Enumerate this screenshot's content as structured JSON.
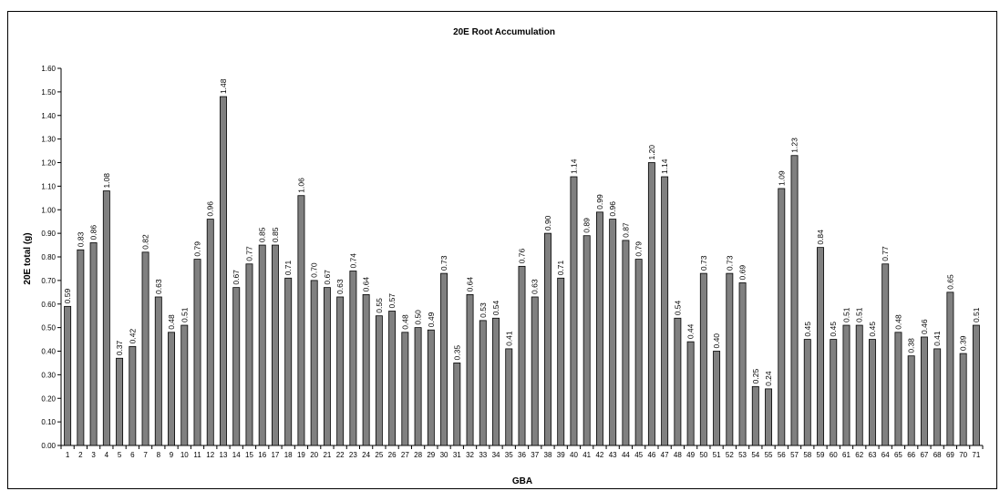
{
  "chart_data": {
    "type": "bar",
    "title": "20E Root Accumulation",
    "xlabel": "GBA",
    "ylabel": "20E total (g)",
    "ylim": [
      0,
      1.6
    ],
    "ytick_step": 0.1,
    "ytick_labels": [
      "0.00",
      "0.10",
      "0.20",
      "0.30",
      "0.40",
      "0.50",
      "0.60",
      "0.70",
      "0.80",
      "0.90",
      "1.00",
      "1.10",
      "1.20",
      "1.30",
      "1.40",
      "1.50",
      "1.60"
    ],
    "grid": false,
    "legend": "none",
    "bar_color": "#808080",
    "categories": [
      "1",
      "2",
      "3",
      "4",
      "5",
      "6",
      "7",
      "8",
      "9",
      "10",
      "11",
      "12",
      "13",
      "14",
      "15",
      "16",
      "17",
      "18",
      "19",
      "20",
      "21",
      "22",
      "23",
      "24",
      "25",
      "26",
      "27",
      "28",
      "29",
      "30",
      "31",
      "32",
      "33",
      "34",
      "35",
      "36",
      "37",
      "38",
      "39",
      "40",
      "41",
      "42",
      "43",
      "44",
      "45",
      "46",
      "47",
      "48",
      "49",
      "50",
      "51",
      "52",
      "53",
      "54",
      "55",
      "56",
      "57",
      "58",
      "59",
      "60",
      "61",
      "62",
      "63",
      "64",
      "65",
      "66",
      "67",
      "68",
      "69",
      "70",
      "71"
    ],
    "values": [
      0.59,
      0.83,
      0.86,
      1.08,
      0.37,
      0.42,
      0.82,
      0.63,
      0.48,
      0.51,
      0.79,
      0.96,
      1.48,
      0.67,
      0.77,
      0.85,
      0.85,
      0.71,
      1.06,
      0.7,
      0.67,
      0.63,
      0.74,
      0.64,
      0.55,
      0.57,
      0.48,
      0.5,
      0.49,
      0.73,
      0.35,
      0.64,
      0.53,
      0.54,
      0.41,
      0.76,
      0.63,
      0.9,
      0.71,
      1.14,
      0.89,
      0.99,
      0.96,
      0.87,
      0.79,
      1.2,
      1.14,
      0.54,
      0.44,
      0.73,
      0.4,
      0.73,
      0.69,
      0.25,
      0.24,
      1.09,
      1.23,
      0.45,
      0.84,
      0.45,
      0.51,
      0.51,
      0.45,
      0.77,
      0.48,
      0.38,
      0.46,
      0.41,
      0.65,
      0.39,
      0.51
    ],
    "data_labels": [
      "0.59",
      "0.83",
      "0.86",
      "1.08",
      "0.37",
      "0.42",
      "0.82",
      "0.63",
      "0.48",
      "0.51",
      "0.79",
      "0.96",
      "1.48",
      "0.67",
      "0.77",
      "0.85",
      "0.85",
      "0.71",
      "1.06",
      "0.70",
      "0.67",
      "0.63",
      "0.74",
      "0.64",
      "0.55",
      "0.57",
      "0.48",
      "0.50",
      "0.49",
      "0.73",
      "0.35",
      "0.64",
      "0.53",
      "0.54",
      "0.41",
      "0.76",
      "0.63",
      "0.90",
      "0.71",
      "1.14",
      "0.89",
      "0.99",
      "0.96",
      "0.87",
      "0.79",
      "1.20",
      "1.14",
      "0.54",
      "0.44",
      "0.73",
      "0.40",
      "0.73",
      "0.69",
      "0.25",
      "0.24",
      "1.09",
      "1.23",
      "0.45",
      "0.84",
      "0.45",
      "0.51",
      "0.51",
      "0.45",
      "0.77",
      "0.48",
      "0.38",
      "0.46",
      "0.41",
      "0.65",
      "0.39",
      "0.51"
    ]
  }
}
